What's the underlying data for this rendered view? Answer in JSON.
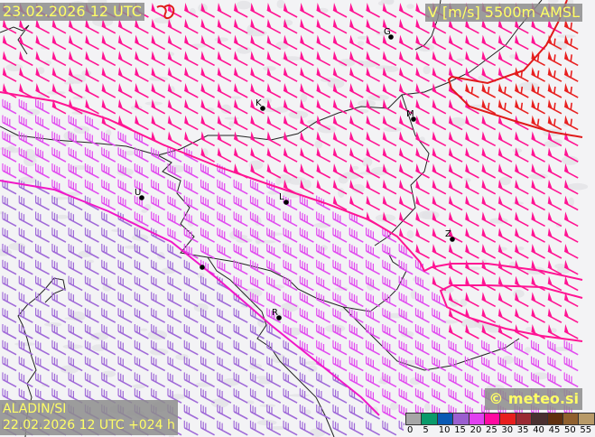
{
  "header": {
    "valid_time": "23.02.2026 12 UTC",
    "parameter": "V [m/s] 5500m AMSL"
  },
  "footer": {
    "model": "ALADIN/SI",
    "run_info": "22.02.2026 12 UTC +024 h",
    "copyright": "© meteo.si"
  },
  "legend": {
    "unit": "m/s",
    "ticks": [
      "0",
      "5",
      "10",
      "15",
      "20",
      "25",
      "30",
      "35",
      "40",
      "45",
      "50",
      "55"
    ],
    "colors": [
      "#a6a6a6",
      "#0a9a6a",
      "#0a5ab4",
      "#9a5ed0",
      "#e040f0",
      "#ff0aa0",
      "#e81e1e",
      "#9a2a34",
      "#4a3030",
      "#603010",
      "#90602e",
      "#b89a68"
    ]
  },
  "wind_colors": {
    "speed_20_25": "#a06ad8",
    "speed_25_30": "#e24cf0",
    "speed_30_35": "#ff1493",
    "speed_35_40": "#e82020"
  },
  "isotach_colors": {
    "line_25": "#f018c8",
    "line_30": "#ff1493",
    "line_35": "#e01a1a"
  },
  "cities": [
    {
      "label": "G"
    },
    {
      "label": "K"
    },
    {
      "label": "M"
    },
    {
      "label": "U"
    },
    {
      "label": "L"
    },
    {
      "label": "Z"
    },
    {
      "label": ""
    },
    {
      "label": "R"
    }
  ]
}
